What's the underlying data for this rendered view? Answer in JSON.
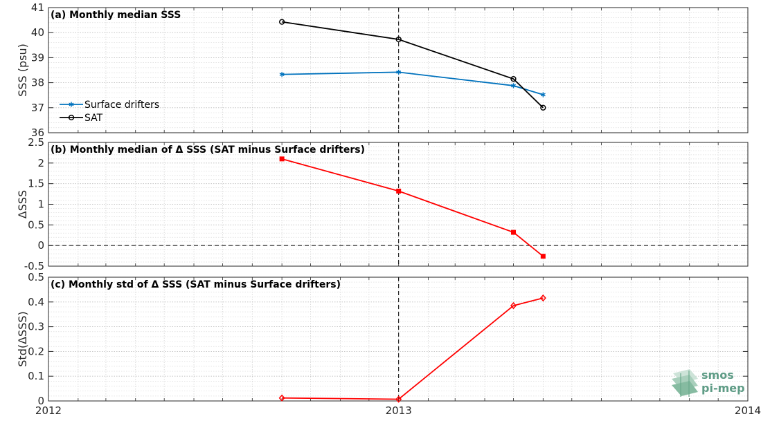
{
  "chart_data": [
    {
      "type": "line",
      "title": "(a) Monthly median SSS",
      "xlabel": "",
      "ylabel": "SSS (psu)",
      "xlim": [
        "2012-01-01",
        "2014-01-01"
      ],
      "ylim": [
        36,
        41
      ],
      "yticks": [
        36,
        37,
        38,
        39,
        40,
        41
      ],
      "ytick_labels": [
        "36",
        "37",
        "38",
        "39",
        "40",
        "41"
      ],
      "grid": true,
      "legend_position": "lower-left",
      "x": [
        "2012-09-01",
        "2013-01-01",
        "2013-05-01",
        "2013-06-01"
      ],
      "series": [
        {
          "name": "Surface drifters",
          "color": "#0072bd",
          "marker": "asterisk",
          "values": [
            38.33,
            38.42,
            37.88,
            37.52
          ]
        },
        {
          "name": "SAT",
          "color": "#000000",
          "marker": "circle",
          "values": [
            40.43,
            39.73,
            38.15,
            37.0
          ]
        }
      ],
      "vline": "2013-01-01"
    },
    {
      "type": "line",
      "title": "(b) Monthly median of Δ SSS (SAT minus Surface drifters)",
      "xlabel": "",
      "ylabel": "ΔSSS",
      "xlim": [
        "2012-01-01",
        "2014-01-01"
      ],
      "ylim": [
        -0.5,
        2.5
      ],
      "yticks": [
        -0.5,
        0,
        0.5,
        1,
        1.5,
        2,
        2.5
      ],
      "ytick_labels": [
        "-0.5",
        "0",
        "0.5",
        "1",
        "1.5",
        "2",
        "2.5"
      ],
      "grid": true,
      "x": [
        "2012-09-01",
        "2013-01-01",
        "2013-05-01",
        "2013-06-01"
      ],
      "series": [
        {
          "color": "#ff0000",
          "marker": "square",
          "values": [
            2.1,
            1.32,
            0.32,
            -0.26
          ]
        }
      ],
      "hline": 0,
      "vline": "2013-01-01"
    },
    {
      "type": "line",
      "title": "(c) Monthly std of Δ SSS (SAT minus Surface drifters)",
      "xlabel": "",
      "ylabel": "Std(ΔSSS)",
      "xlim": [
        "2012-01-01",
        "2014-01-01"
      ],
      "ylim": [
        0,
        0.5
      ],
      "yticks": [
        0,
        0.1,
        0.2,
        0.3,
        0.4,
        0.5
      ],
      "ytick_labels": [
        "0",
        "0.1",
        "0.2",
        "0.3",
        "0.4",
        "0.5"
      ],
      "xticks": [
        "2012-01-01",
        "2013-01-01",
        "2014-01-01"
      ],
      "xtick_labels": [
        "2012",
        "2013",
        "2014"
      ],
      "grid": true,
      "x": [
        "2012-09-01",
        "2013-01-01",
        "2013-05-01",
        "2013-06-01"
      ],
      "series": [
        {
          "color": "#ff0000",
          "marker": "diamond",
          "values": [
            0.012,
            0.007,
            0.385,
            0.416
          ]
        }
      ],
      "vline": "2013-01-01"
    }
  ],
  "logo": {
    "line1": "smos",
    "line2": "pi-mep",
    "color": "#5f9c86"
  }
}
